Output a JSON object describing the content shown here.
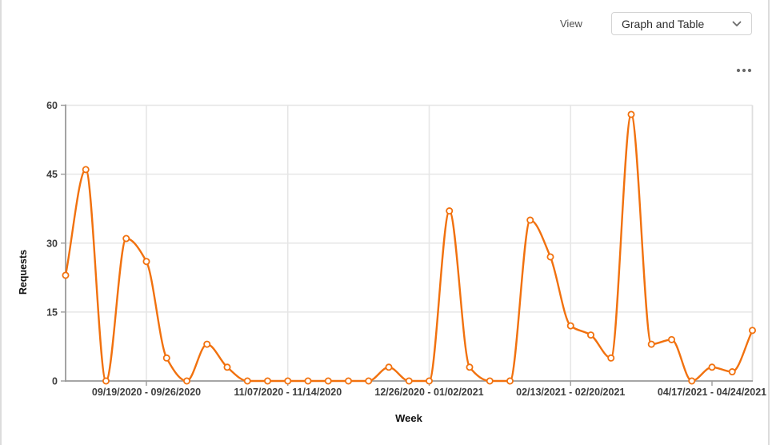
{
  "header": {
    "view_label": "View",
    "view_selected": "Graph and Table"
  },
  "icons": {
    "dropdown": "chevron-down-icon",
    "more": "ellipsis-icon"
  },
  "colors": {
    "line": "#F1710E",
    "axis": "#9a9a9a",
    "gridline": "#e6e6e6",
    "plot_border": "#dedede",
    "tick_text": "#3d3d3d",
    "axis_title_text": "#111111",
    "icon_gray": "#6b6b6b"
  },
  "chart_data": {
    "type": "line",
    "title": "",
    "xlabel": "Week",
    "ylabel": "Requests",
    "ylim": [
      0,
      60
    ],
    "yticks": [
      0,
      15,
      30,
      45,
      60
    ],
    "grid": true,
    "legend_position": "none",
    "x_tick_indices": [
      4,
      11,
      18,
      25,
      32
    ],
    "x_tick_labels": [
      "09/19/2020 - 09/26/2020",
      "11/07/2020 - 11/14/2020",
      "12/26/2020 - 01/02/2021",
      "02/13/2021 - 02/20/2021",
      "04/17/2021 - 04/24/2021"
    ],
    "series": [
      {
        "name": "Requests",
        "color": "#F1710E",
        "marker": "open-circle",
        "values": [
          23,
          46,
          0,
          31,
          26,
          5,
          0,
          8,
          3,
          0,
          0,
          0,
          0,
          0,
          0,
          0,
          3,
          0,
          0,
          37,
          3,
          0,
          0,
          35,
          27,
          12,
          10,
          5,
          58,
          8,
          9,
          0,
          3,
          2,
          11
        ]
      }
    ]
  }
}
